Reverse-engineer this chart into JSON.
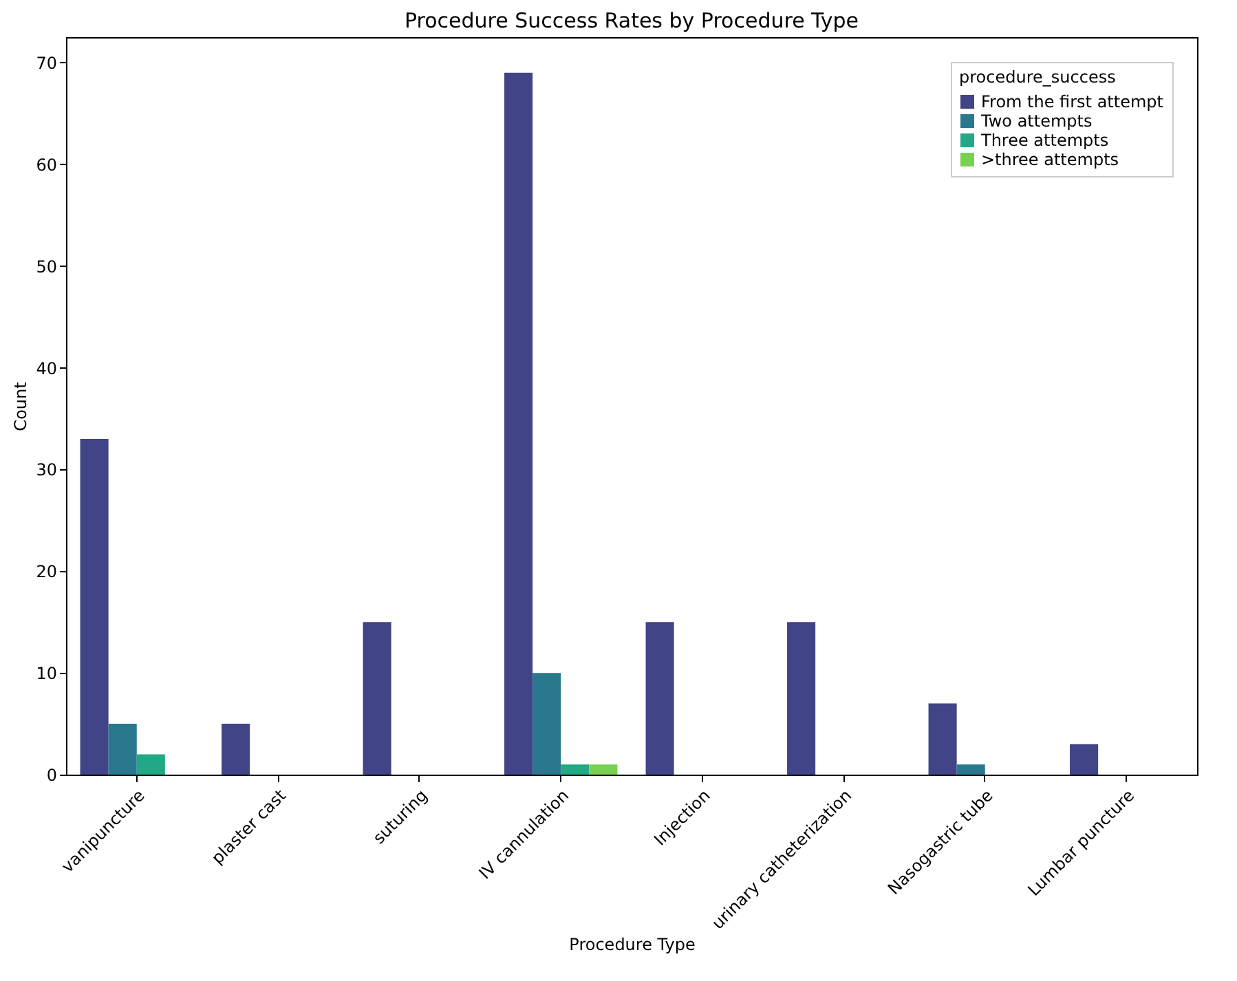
{
  "chart_data": {
    "type": "bar",
    "title": "Procedure Success Rates by Procedure Type",
    "xlabel": "Procedure Type",
    "ylabel": "Count",
    "legend_title": "procedure_success",
    "categories": [
      "vanipuncture",
      "plaster cast",
      "suturing",
      "IV cannulation",
      "Injection",
      "urinary catheterization",
      "Nasogastric tube",
      "Lumbar puncture"
    ],
    "series": [
      {
        "name": "From the first attempt",
        "color": "#414487",
        "values": [
          33,
          5,
          15,
          69,
          15,
          15,
          7,
          3
        ]
      },
      {
        "name": "Two attempts",
        "color": "#2a788e",
        "values": [
          5,
          0,
          0,
          10,
          0,
          0,
          1,
          0
        ]
      },
      {
        "name": "Three attempts",
        "color": "#22a884",
        "values": [
          2,
          0,
          0,
          1,
          0,
          0,
          0,
          0
        ]
      },
      {
        "name": ">three attempts",
        "color": "#7ad151",
        "values": [
          0,
          0,
          0,
          1,
          0,
          0,
          0,
          0
        ]
      }
    ],
    "ylim": [
      0,
      72.5
    ],
    "yticks": [
      0,
      10,
      20,
      30,
      40,
      50,
      60,
      70
    ],
    "grid": false,
    "legend": "top right"
  }
}
